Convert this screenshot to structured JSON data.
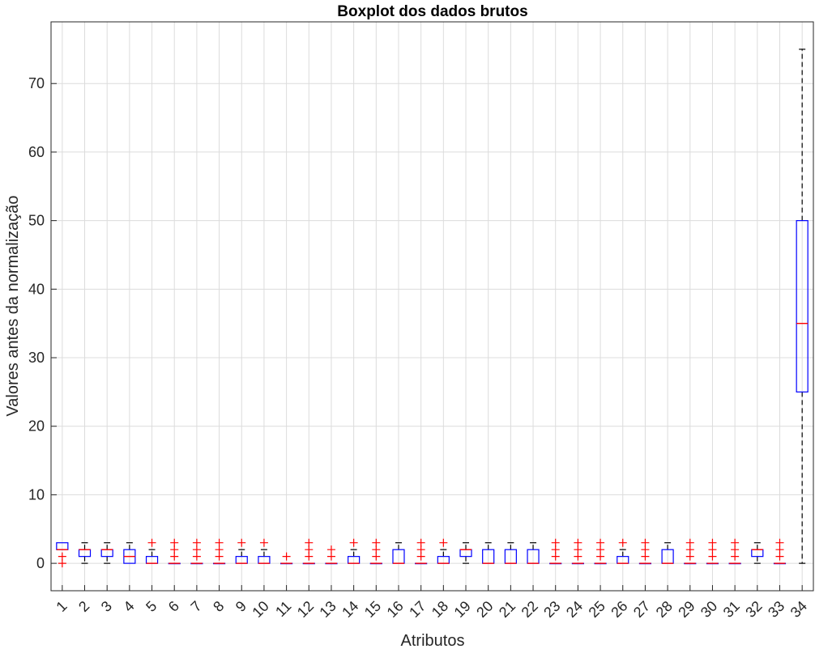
{
  "chart_data": {
    "type": "boxplot",
    "title": "Boxplot dos dados brutos",
    "xlabel": "Atributos",
    "ylabel": "Valores antes da normalização",
    "ylim": [
      -4,
      79
    ],
    "yticks": [
      0,
      10,
      20,
      30,
      40,
      50,
      60,
      70
    ],
    "grid": true,
    "colors": {
      "box": "#0000ff",
      "median": "#ff0000",
      "outlier": "#ff0000",
      "whisker": "#000000"
    },
    "categories": [
      "1",
      "2",
      "3",
      "4",
      "5",
      "6",
      "7",
      "8",
      "9",
      "10",
      "11",
      "12",
      "13",
      "14",
      "15",
      "16",
      "17",
      "18",
      "19",
      "20",
      "21",
      "22",
      "23",
      "24",
      "25",
      "26",
      "27",
      "28",
      "29",
      "30",
      "31",
      "32",
      "33",
      "34"
    ],
    "boxes": [
      {
        "q1": 2,
        "median": 2,
        "q3": 3,
        "wlo": 2,
        "whi": 3,
        "outliers": [
          0,
          1
        ]
      },
      {
        "q1": 1,
        "median": 2,
        "q3": 2,
        "wlo": 0,
        "whi": 3,
        "outliers": []
      },
      {
        "q1": 1,
        "median": 2,
        "q3": 2,
        "wlo": 0,
        "whi": 3,
        "outliers": []
      },
      {
        "q1": 0,
        "median": 1,
        "q3": 2,
        "wlo": 0,
        "whi": 3,
        "outliers": []
      },
      {
        "q1": 0,
        "median": 0,
        "q3": 1,
        "wlo": 0,
        "whi": 2,
        "outliers": [
          3
        ]
      },
      {
        "q1": 0,
        "median": 0,
        "q3": 0,
        "wlo": 0,
        "whi": 0,
        "outliers": [
          1,
          2,
          3
        ]
      },
      {
        "q1": 0,
        "median": 0,
        "q3": 0,
        "wlo": 0,
        "whi": 0,
        "outliers": [
          1,
          2,
          3
        ]
      },
      {
        "q1": 0,
        "median": 0,
        "q3": 0,
        "wlo": 0,
        "whi": 0,
        "outliers": [
          1,
          2,
          3
        ]
      },
      {
        "q1": 0,
        "median": 0,
        "q3": 1,
        "wlo": 0,
        "whi": 2,
        "outliers": [
          3
        ]
      },
      {
        "q1": 0,
        "median": 0,
        "q3": 1,
        "wlo": 0,
        "whi": 2,
        "outliers": [
          3
        ]
      },
      {
        "q1": 0,
        "median": 0,
        "q3": 0,
        "wlo": 0,
        "whi": 0,
        "outliers": [
          1
        ]
      },
      {
        "q1": 0,
        "median": 0,
        "q3": 0,
        "wlo": 0,
        "whi": 0,
        "outliers": [
          1,
          2,
          3
        ]
      },
      {
        "q1": 0,
        "median": 0,
        "q3": 0,
        "wlo": 0,
        "whi": 0,
        "outliers": [
          1,
          2
        ]
      },
      {
        "q1": 0,
        "median": 0,
        "q3": 1,
        "wlo": 0,
        "whi": 2,
        "outliers": [
          3
        ]
      },
      {
        "q1": 0,
        "median": 0,
        "q3": 0,
        "wlo": 0,
        "whi": 0,
        "outliers": [
          1,
          2,
          3
        ]
      },
      {
        "q1": 0,
        "median": 0,
        "q3": 2,
        "wlo": 0,
        "whi": 3,
        "outliers": []
      },
      {
        "q1": 0,
        "median": 0,
        "q3": 0,
        "wlo": 0,
        "whi": 0,
        "outliers": [
          1,
          2,
          3
        ]
      },
      {
        "q1": 0,
        "median": 0,
        "q3": 1,
        "wlo": 0,
        "whi": 2,
        "outliers": [
          3
        ]
      },
      {
        "q1": 1,
        "median": 2,
        "q3": 2,
        "wlo": 0,
        "whi": 3,
        "outliers": []
      },
      {
        "q1": 0,
        "median": 0,
        "q3": 2,
        "wlo": 0,
        "whi": 3,
        "outliers": []
      },
      {
        "q1": 0,
        "median": 0,
        "q3": 2,
        "wlo": 0,
        "whi": 3,
        "outliers": []
      },
      {
        "q1": 0,
        "median": 0,
        "q3": 2,
        "wlo": 0,
        "whi": 3,
        "outliers": []
      },
      {
        "q1": 0,
        "median": 0,
        "q3": 0,
        "wlo": 0,
        "whi": 0,
        "outliers": [
          1,
          2,
          3
        ]
      },
      {
        "q1": 0,
        "median": 0,
        "q3": 0,
        "wlo": 0,
        "whi": 0,
        "outliers": [
          1,
          2,
          3
        ]
      },
      {
        "q1": 0,
        "median": 0,
        "q3": 0,
        "wlo": 0,
        "whi": 0,
        "outliers": [
          1,
          2,
          3
        ]
      },
      {
        "q1": 0,
        "median": 0,
        "q3": 1,
        "wlo": 0,
        "whi": 2,
        "outliers": [
          3
        ]
      },
      {
        "q1": 0,
        "median": 0,
        "q3": 0,
        "wlo": 0,
        "whi": 0,
        "outliers": [
          1,
          2,
          3
        ]
      },
      {
        "q1": 0,
        "median": 0,
        "q3": 2,
        "wlo": 0,
        "whi": 3,
        "outliers": []
      },
      {
        "q1": 0,
        "median": 0,
        "q3": 0,
        "wlo": 0,
        "whi": 0,
        "outliers": [
          1,
          2,
          3
        ]
      },
      {
        "q1": 0,
        "median": 0,
        "q3": 0,
        "wlo": 0,
        "whi": 0,
        "outliers": [
          1,
          2,
          3
        ]
      },
      {
        "q1": 0,
        "median": 0,
        "q3": 0,
        "wlo": 0,
        "whi": 0,
        "outliers": [
          1,
          2,
          3
        ]
      },
      {
        "q1": 1,
        "median": 2,
        "q3": 2,
        "wlo": 0,
        "whi": 3,
        "outliers": []
      },
      {
        "q1": 0,
        "median": 0,
        "q3": 0,
        "wlo": 0,
        "whi": 0,
        "outliers": [
          1,
          2,
          3
        ]
      },
      {
        "q1": 25,
        "median": 35,
        "q3": 50,
        "wlo": 0,
        "whi": 75,
        "outliers": []
      }
    ]
  }
}
